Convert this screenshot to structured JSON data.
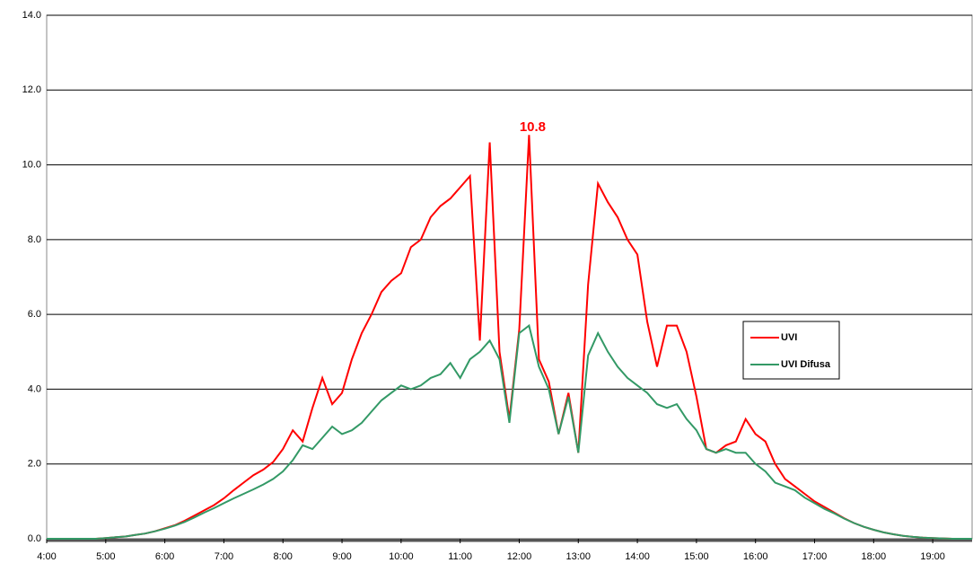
{
  "chart_data": {
    "type": "line",
    "x": [
      240,
      250,
      260,
      270,
      280,
      290,
      300,
      310,
      320,
      330,
      340,
      350,
      360,
      370,
      380,
      390,
      400,
      410,
      420,
      430,
      440,
      450,
      460,
      470,
      480,
      490,
      500,
      510,
      520,
      530,
      540,
      550,
      560,
      570,
      580,
      590,
      600,
      610,
      620,
      630,
      640,
      650,
      660,
      670,
      680,
      690,
      700,
      710,
      720,
      730,
      740,
      750,
      760,
      770,
      780,
      790,
      800,
      810,
      820,
      830,
      840,
      850,
      860,
      870,
      880,
      890,
      900,
      910,
      920,
      930,
      940,
      950,
      960,
      970,
      980,
      990,
      1000,
      1010,
      1020,
      1030,
      1040,
      1050,
      1060,
      1070,
      1080,
      1090,
      1100,
      1110,
      1120,
      1130,
      1140,
      1150,
      1160,
      1170,
      1180
    ],
    "series": [
      {
        "name": "UVI",
        "color": "#ff0000",
        "values": [
          0,
          0,
          0,
          0,
          0,
          0,
          0.02,
          0.04,
          0.06,
          0.1,
          0.14,
          0.2,
          0.28,
          0.36,
          0.48,
          0.62,
          0.76,
          0.9,
          1.08,
          1.3,
          1.5,
          1.7,
          1.85,
          2.05,
          2.4,
          2.9,
          2.6,
          3.5,
          4.3,
          3.6,
          3.9,
          4.8,
          5.5,
          6.0,
          6.6,
          6.9,
          7.1,
          7.8,
          8.0,
          8.6,
          8.9,
          9.1,
          9.4,
          9.7,
          5.3,
          10.6,
          5.0,
          3.2,
          5.6,
          10.8,
          4.8,
          4.2,
          2.8,
          3.9,
          2.3,
          6.8,
          9.5,
          9.0,
          8.6,
          8.0,
          7.6,
          5.8,
          4.6,
          5.7,
          5.7,
          5.0,
          3.8,
          2.4,
          2.3,
          2.5,
          2.6,
          3.2,
          2.8,
          2.6,
          2.0,
          1.6,
          1.4,
          1.2,
          1.0,
          0.85,
          0.7,
          0.55,
          0.42,
          0.32,
          0.24,
          0.17,
          0.12,
          0.08,
          0.05,
          0.03,
          0.02,
          0.01,
          0,
          0,
          0
        ]
      },
      {
        "name": "UVI Difusa",
        "color": "#339966",
        "values": [
          0,
          0,
          0,
          0,
          0,
          0,
          0.02,
          0.04,
          0.06,
          0.1,
          0.14,
          0.2,
          0.27,
          0.35,
          0.45,
          0.57,
          0.7,
          0.82,
          0.95,
          1.08,
          1.2,
          1.32,
          1.45,
          1.6,
          1.8,
          2.1,
          2.5,
          2.4,
          2.7,
          3.0,
          2.8,
          2.9,
          3.1,
          3.4,
          3.7,
          3.9,
          4.1,
          4.0,
          4.1,
          4.3,
          4.4,
          4.7,
          4.3,
          4.8,
          5.0,
          5.3,
          4.8,
          3.1,
          5.5,
          5.7,
          4.6,
          4.0,
          2.8,
          3.8,
          2.3,
          4.9,
          5.5,
          5.0,
          4.6,
          4.3,
          4.1,
          3.9,
          3.6,
          3.5,
          3.6,
          3.2,
          2.9,
          2.4,
          2.3,
          2.4,
          2.3,
          2.3,
          2.0,
          1.8,
          1.5,
          1.4,
          1.3,
          1.1,
          0.95,
          0.8,
          0.68,
          0.54,
          0.42,
          0.32,
          0.24,
          0.17,
          0.12,
          0.08,
          0.05,
          0.03,
          0.02,
          0.01,
          0,
          0,
          0
        ]
      }
    ],
    "xlim": [
      240,
      1180
    ],
    "xticks": [
      {
        "value": 240,
        "label": "4:00"
      },
      {
        "value": 300,
        "label": "5:00"
      },
      {
        "value": 360,
        "label": "6:00"
      },
      {
        "value": 420,
        "label": "7:00"
      },
      {
        "value": 480,
        "label": "8:00"
      },
      {
        "value": 540,
        "label": "9:00"
      },
      {
        "value": 600,
        "label": "10:00"
      },
      {
        "value": 660,
        "label": "11:00"
      },
      {
        "value": 720,
        "label": "12:00"
      },
      {
        "value": 780,
        "label": "13:00"
      },
      {
        "value": 840,
        "label": "14:00"
      },
      {
        "value": 900,
        "label": "15:00"
      },
      {
        "value": 960,
        "label": "16:00"
      },
      {
        "value": 1020,
        "label": "17:00"
      },
      {
        "value": 1080,
        "label": "18:00"
      },
      {
        "value": 1140,
        "label": "19:00"
      }
    ],
    "ylim": [
      0,
      14
    ],
    "yticks": [
      {
        "value": 0,
        "label": "0.0"
      },
      {
        "value": 2,
        "label": "2.0"
      },
      {
        "value": 4,
        "label": "4.0"
      },
      {
        "value": 6,
        "label": "6.0"
      },
      {
        "value": 8,
        "label": "8.0"
      },
      {
        "value": 10,
        "label": "10.0"
      },
      {
        "value": 12,
        "label": "12.0"
      },
      {
        "value": 14,
        "label": "14.0"
      }
    ],
    "grid": true,
    "legend": "right",
    "annotations": [
      {
        "text": "10.8",
        "x": 730,
        "y": 10.8,
        "color": "#ff0000"
      }
    ]
  }
}
